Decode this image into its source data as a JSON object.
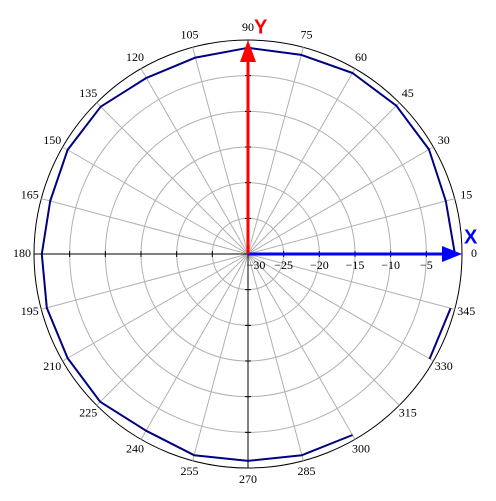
{
  "chart_data": {
    "type": "polar",
    "rlim": [
      -30,
      0
    ],
    "rticks": [
      {
        "value": -30,
        "label": "−30"
      },
      {
        "value": -25,
        "label": "−25"
      },
      {
        "value": -20,
        "label": "−20"
      },
      {
        "value": -15,
        "label": "−15"
      },
      {
        "value": -10,
        "label": "−10"
      },
      {
        "value": -5,
        "label": "−5"
      }
    ],
    "angle_ticks": [
      0,
      15,
      30,
      45,
      60,
      75,
      90,
      105,
      120,
      135,
      150,
      165,
      180,
      195,
      210,
      225,
      240,
      255,
      270,
      285,
      300,
      315,
      330,
      345
    ],
    "x_axis_label": "X",
    "x_axis_color": "#0000ff",
    "y_axis_label": "Y",
    "y_axis_color": "#ff0000",
    "grid": true,
    "series": [
      {
        "color": "#000080",
        "angles": [
          0,
          15,
          30,
          45,
          60,
          75,
          90,
          105,
          120,
          135,
          150,
          165,
          180,
          195,
          210,
          225,
          240,
          255,
          270,
          285,
          300,
          315,
          330,
          345
        ],
        "values": [
          -1.0,
          -1.3,
          -0.7,
          -0.6,
          -0.7,
          -1.1,
          -1.1,
          -1.5,
          -1.5,
          -0.8,
          -0.8,
          -1.3,
          -1.1,
          -0.8,
          -0.8,
          -0.7,
          -1.4,
          -0.8,
          -1.0,
          -0.8,
          -0.7,
          null,
          -0.6,
          -0.6
        ]
      }
    ]
  }
}
